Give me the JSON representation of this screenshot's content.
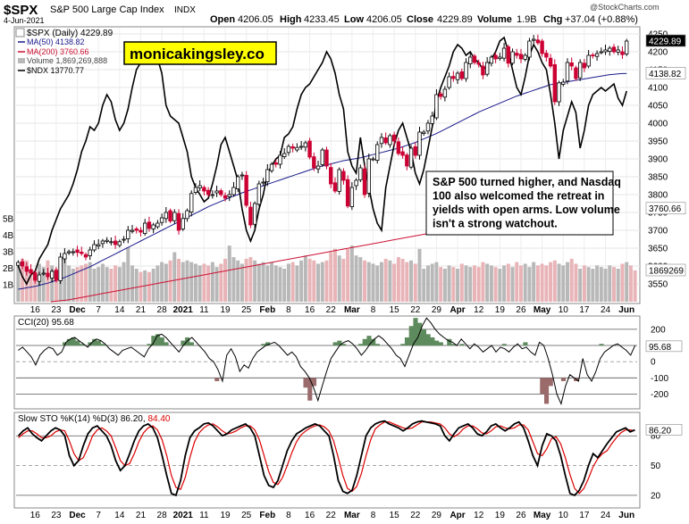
{
  "header": {
    "symbol": "$SPX",
    "name": "S&P 500 Large Cap Index",
    "exchange": "INDX",
    "date": "4-Jun-2021",
    "open_label": "Open",
    "open": "4206.05",
    "high_label": "High",
    "high": "4233.45",
    "low_label": "Low",
    "low": "4206.05",
    "close_label": "Close",
    "close": "4229.89",
    "volume_label": "Volume",
    "volume": "1.9B",
    "chg_label": "Chg",
    "chg": "+37.04 (+0.88%)",
    "watermark": "@StockCharts.com"
  },
  "legend": {
    "spx": "$SPX (Daily) 4229.89",
    "ma50": "MA(50) 4138.82",
    "ma200": "MA(200) 3760.66",
    "volume": "Volume 1,869,269,888",
    "ndx": "$NDX 13770.77"
  },
  "brand": "monicakingsley.co",
  "annotation": "S&P 500 turned higher, and Nasdaq 100 also welcomed the retreat in yields with open arms. Low volume isn't a strong watchout.",
  "colors": {
    "up": "#000000",
    "down": "#cc0033",
    "ma50": "#1a1a8c",
    "ma200": "#cc1133",
    "ndx": "#000000",
    "cci_fill": "#5e8b5e",
    "cci_neg_fill": "#9b6b6b",
    "sto_k": "#000000",
    "sto_d": "#dd0000",
    "brand_bg": "#ffff00",
    "vol_up": "#b8b8b8",
    "vol_down": "#e8b4b8"
  },
  "chart_data": {
    "type": "candlestick",
    "main_axis": {
      "ylim": [
        3500,
        4260
      ],
      "ticks": [
        3550,
        3600,
        3650,
        3700,
        3750,
        3800,
        3850,
        3900,
        3950,
        4000,
        4050,
        4100,
        4150,
        4200,
        4250
      ],
      "tick_labels": [
        "3550",
        "3600",
        "3650",
        "3700",
        "3750",
        "3800",
        "3850",
        "3900",
        "3950",
        "4000",
        "4050",
        "4100",
        "4150",
        "4200",
        "4250"
      ],
      "last_value_labels": [
        "4229.89",
        "4138.82",
        "3760.66",
        "1869269"
      ],
      "ndx_last_label": "13770.77"
    },
    "volume_axis": {
      "ticks": [
        "1B",
        "2B",
        "3B",
        "4B",
        "5B"
      ]
    },
    "x_labels": [
      "16",
      "23",
      "Dec",
      "7",
      "14",
      "21",
      "28",
      "2021",
      "11",
      "19",
      "25",
      "Feb",
      "8",
      "16",
      "22",
      "Mar",
      "8",
      "15",
      "22",
      "29",
      "Apr",
      "12",
      "19",
      "26",
      "May",
      "10",
      "17",
      "24",
      "Jun"
    ],
    "closes": [
      3610,
      3600,
      3585,
      3580,
      3560,
      3575,
      3580,
      3570,
      3585,
      3560,
      3625,
      3635,
      3640,
      3640,
      3638,
      3635,
      3625,
      3645,
      3660,
      3660,
      3670,
      3672,
      3668,
      3660,
      3668,
      3675,
      3700,
      3700,
      3700,
      3695,
      3720,
      3705,
      3715,
      3720,
      3735,
      3750,
      3726,
      3750,
      3700,
      3733,
      3755,
      3803,
      3820,
      3825,
      3810,
      3800,
      3800,
      3810,
      3800,
      3790,
      3800,
      3820,
      3850,
      3855,
      3770,
      3715,
      3775,
      3830,
      3835,
      3870,
      3885,
      3885,
      3910,
      3915,
      3935,
      3930,
      3932,
      3935,
      3945,
      3905,
      3875,
      3880,
      3925,
      3880,
      3830,
      3810,
      3870,
      3840,
      3768,
      3820,
      3840,
      3875,
      3800,
      3900,
      3900,
      3940,
      3960,
      3945,
      3965,
      3950,
      3915,
      3910,
      3880,
      3930,
      3910,
      3975,
      3975,
      4000,
      4020,
      4080,
      4075,
      4095,
      4130,
      4125,
      4140,
      4125,
      4170,
      4185,
      4170,
      4165,
      4135,
      4170,
      4185,
      4180,
      4185,
      4210,
      4168,
      4200,
      4190,
      4180,
      4190,
      4230,
      4235,
      4225,
      4195,
      4185,
      4160,
      4060,
      4113,
      4115,
      4170,
      4160,
      4125,
      4170,
      4155,
      4190,
      4190,
      4195,
      4200,
      4205,
      4210,
      4200,
      4205,
      4192,
      4230
    ],
    "ma50": [
      3535,
      3537,
      3539,
      3541,
      3543,
      3546,
      3549,
      3552,
      3556,
      3560,
      3564,
      3568,
      3573,
      3578,
      3583,
      3588,
      3593,
      3598,
      3604,
      3610,
      3616,
      3622,
      3628,
      3634,
      3640,
      3646,
      3652,
      3658,
      3664,
      3670,
      3676,
      3682,
      3688,
      3694,
      3700,
      3706,
      3712,
      3718,
      3724,
      3730,
      3736,
      3742,
      3748,
      3754,
      3760,
      3766,
      3771,
      3776,
      3781,
      3786,
      3791,
      3796,
      3800,
      3805,
      3809,
      3813,
      3817,
      3821,
      3825,
      3829,
      3833,
      3837,
      3841,
      3845,
      3849,
      3853,
      3857,
      3861,
      3865,
      3869,
      3873,
      3877,
      3880,
      3883,
      3886,
      3889,
      3892,
      3895,
      3897,
      3899,
      3901,
      3903,
      3906,
      3909,
      3912,
      3915,
      3918,
      3921,
      3924,
      3927,
      3930,
      3934,
      3938,
      3942,
      3946,
      3951,
      3956,
      3961,
      3966,
      3971,
      3977,
      3983,
      3989,
      3995,
      4001,
      4007,
      4013,
      4019,
      4025,
      4031,
      4036,
      4041,
      4046,
      4051,
      4056,
      4061,
      4066,
      4071,
      4076,
      4080,
      4084,
      4088,
      4092,
      4096,
      4100,
      4104,
      4108,
      4110,
      4112,
      4114,
      4116,
      4118,
      4120,
      4122,
      4124,
      4126,
      4128,
      4130,
      4132,
      4134,
      4136,
      4137,
      4138,
      4139,
      4139
    ],
    "ma200": {
      "x": [
        57,
        76,
        89,
        102,
        115,
        128,
        141,
        154,
        167,
        180,
        193,
        206,
        219,
        232,
        245,
        258,
        271,
        284,
        297,
        310,
        323,
        336,
        349,
        362,
        375,
        388,
        401,
        414,
        427,
        440,
        453,
        466,
        479,
        492,
        505,
        518,
        531,
        544
      ],
      "values": [
        3500,
        3505,
        3511,
        3517,
        3523,
        3529,
        3535,
        3541,
        3547,
        3553,
        3559,
        3565,
        3571,
        3577,
        3583,
        3589,
        3595,
        3601,
        3607,
        3613,
        3619,
        3625,
        3631,
        3637,
        3643,
        3649,
        3655,
        3661,
        3667,
        3673,
        3679,
        3685,
        3691,
        3697,
        3703,
        3709,
        3715,
        3721
      ],
      "note_last": 3760.66
    },
    "ndx_scaled": [
      3600,
      3570,
      3550,
      3575,
      3585,
      3620,
      3640,
      3660,
      3700,
      3730,
      3760,
      3780,
      3800,
      3830,
      3870,
      3920,
      3950,
      3990,
      3980,
      4000,
      4050,
      4080,
      4060,
      4010,
      3980,
      4000,
      4040,
      4100,
      4150,
      4170,
      4200,
      4210,
      4220,
      4180,
      4140,
      4050,
      4020,
      4010,
      4000,
      3960,
      3920,
      3850,
      3820,
      3800,
      3780,
      3790,
      3830,
      3880,
      3940,
      3960,
      3920,
      3880,
      3840,
      3760,
      3700,
      3670,
      3700,
      3760,
      3800,
      3860,
      3880,
      3900,
      3910,
      3960,
      3970,
      3990,
      4040,
      4080,
      4100,
      4110,
      4130,
      4150,
      4170,
      4200,
      4180,
      4140,
      4080,
      4040,
      3920,
      3880,
      3860,
      3960,
      3880,
      3820,
      3760,
      3720,
      3700,
      3820,
      3880,
      3940,
      3980,
      4000,
      3960,
      3920,
      3860,
      3830,
      3870,
      3930,
      3990,
      4060,
      4100,
      4130,
      4160,
      4200,
      4220,
      4210,
      4190,
      4200,
      4180,
      4170,
      4150,
      4160,
      4180,
      4200,
      4230,
      4240,
      4200,
      4150,
      4100,
      4080,
      4130,
      4190,
      4220,
      4200,
      4170,
      4150,
      4080,
      4000,
      3900,
      3980,
      4020,
      4060,
      4030,
      3930,
      3980,
      4050,
      4080,
      4090,
      4100,
      4090,
      4100,
      4110,
      4070,
      4050,
      4090
    ],
    "volume_billions": [
      2.4,
      2.6,
      2.5,
      1.8,
      1.9,
      2.3,
      2.1,
      2.5,
      2.2,
      2.0,
      2.4,
      2.6,
      2.2,
      2.0,
      2.1,
      2.2,
      2.3,
      2.4,
      2.0,
      2.1,
      2.3,
      2.1,
      2.0,
      2.2,
      2.1,
      2.4,
      3.3,
      2.2,
      2.0,
      1.8,
      1.9,
      1.8,
      2.0,
      2.2,
      2.4,
      2.3,
      2.5,
      3.0,
      2.6,
      2.4,
      2.5,
      2.4,
      2.3,
      2.2,
      2.3,
      2.2,
      2.4,
      2.1,
      2.3,
      2.6,
      3.4,
      2.7,
      2.5,
      2.3,
      2.6,
      2.7,
      2.5,
      2.3,
      2.4,
      2.2,
      2.4,
      2.2,
      2.1,
      2.0,
      2.3,
      2.4,
      2.2,
      2.5,
      2.8,
      2.6,
      2.5,
      2.3,
      2.4,
      2.5,
      3.0,
      3.2,
      2.8,
      2.6,
      3.2,
      3.4,
      2.8,
      2.7,
      2.5,
      2.4,
      2.3,
      2.2,
      2.4,
      2.6,
      2.5,
      2.3,
      2.7,
      2.6,
      2.4,
      2.5,
      2.3,
      3.2,
      2.0,
      2.2,
      2.3,
      2.4,
      2.1,
      2.0,
      2.2,
      2.1,
      2.0,
      2.3,
      2.2,
      2.1,
      2.2,
      2.1,
      2.4,
      2.3,
      2.2,
      2.1,
      2.0,
      2.2,
      2.3,
      2.1,
      2.4,
      2.2,
      2.3,
      2.1,
      2.4,
      2.2,
      2.3,
      2.2,
      2.4,
      2.5,
      2.3,
      2.2,
      2.4,
      2.6,
      2.3,
      2.0,
      2.2,
      2.1,
      2.0,
      2.2,
      2.1,
      2.0,
      2.2,
      2.1,
      2.0,
      2.3,
      2.4,
      2.2,
      1.9
    ],
    "cci": {
      "label": "CCI(20) 95.68",
      "last_label": "95.68",
      "ylim": [
        -280,
        260
      ],
      "ticks": [
        200,
        100,
        0,
        -100,
        -200
      ],
      "tick_labels": [
        "200",
        "100",
        "0",
        "-100",
        "-200"
      ],
      "values": [
        70,
        90,
        60,
        30,
        -20,
        40,
        70,
        90,
        80,
        40,
        60,
        120,
        140,
        150,
        130,
        110,
        90,
        120,
        140,
        130,
        110,
        80,
        60,
        40,
        70,
        80,
        90,
        70,
        50,
        30,
        80,
        110,
        160,
        170,
        150,
        120,
        90,
        60,
        100,
        130,
        150,
        120,
        90,
        60,
        20,
        0,
        -50,
        -120,
        40,
        80,
        30,
        -60,
        -20,
        -40,
        20,
        60,
        80,
        100,
        110,
        120,
        100,
        70,
        40,
        60,
        30,
        -30,
        -60,
        -100,
        -160,
        -240,
        -150,
        -60,
        20,
        60,
        100,
        120,
        130,
        110,
        80,
        40,
        70,
        110,
        140,
        160,
        140,
        110,
        80,
        40,
        20,
        -30,
        40,
        110,
        150,
        220,
        270,
        240,
        200,
        170,
        150,
        130,
        120,
        100,
        140,
        110,
        80,
        110,
        90,
        60,
        80,
        100,
        60,
        90,
        80,
        60,
        90,
        110,
        80,
        90,
        60,
        40,
        120,
        100,
        20,
        -80,
        -200,
        -260,
        -150,
        -80,
        -100,
        -120,
        20,
        -80,
        -120,
        -60,
        20,
        60,
        80,
        100,
        110,
        90,
        70,
        40,
        100
      ]
    },
    "sto": {
      "label": "Slow STO %K(14) %D(3) 86.20,",
      "d_label": "84.40",
      "last_label": "86.20",
      "ylim": [
        10,
        100
      ],
      "ticks": [
        80,
        50,
        20
      ],
      "tick_labels": [
        "80",
        "50",
        "20"
      ],
      "k": [
        80,
        85,
        88,
        82,
        78,
        75,
        80,
        85,
        88,
        86,
        80,
        60,
        50,
        55,
        70,
        82,
        88,
        90,
        85,
        80,
        70,
        55,
        45,
        50,
        62,
        75,
        85,
        90,
        92,
        88,
        78,
        60,
        40,
        22,
        20,
        35,
        60,
        78,
        85,
        88,
        92,
        93,
        90,
        85,
        80,
        82,
        86,
        88,
        90,
        92,
        88,
        80,
        60,
        40,
        30,
        28,
        35,
        50,
        65,
        75,
        82,
        85,
        88,
        90,
        92,
        90,
        85,
        80,
        60,
        35,
        24,
        22,
        25,
        40,
        60,
        80,
        88,
        92,
        94,
        95,
        92,
        90,
        88,
        85,
        88,
        92,
        94,
        95,
        94,
        93,
        92,
        90,
        80,
        75,
        82,
        88,
        90,
        92,
        88,
        82,
        80,
        84,
        90,
        92,
        88,
        85,
        88,
        92,
        94,
        88,
        75,
        60,
        50,
        70,
        82,
        80,
        75,
        60,
        40,
        22,
        20,
        25,
        35,
        50,
        62,
        58,
        65,
        72,
        78,
        84,
        86,
        88,
        84,
        86
      ],
      "d": [
        78,
        82,
        85,
        85,
        82,
        78,
        78,
        80,
        84,
        86,
        85,
        75,
        62,
        55,
        58,
        68,
        80,
        86,
        88,
        85,
        80,
        68,
        55,
        50,
        52,
        62,
        74,
        83,
        88,
        90,
        86,
        76,
        60,
        40,
        28,
        26,
        38,
        58,
        74,
        83,
        88,
        91,
        92,
        89,
        85,
        82,
        83,
        85,
        88,
        90,
        90,
        86,
        76,
        60,
        44,
        33,
        31,
        38,
        50,
        63,
        74,
        81,
        85,
        88,
        90,
        91,
        89,
        85,
        75,
        58,
        40,
        27,
        24,
        29,
        42,
        60,
        76,
        87,
        91,
        94,
        94,
        92,
        90,
        88,
        87,
        88,
        91,
        94,
        94,
        94,
        93,
        92,
        88,
        82,
        79,
        82,
        87,
        90,
        90,
        87,
        83,
        82,
        85,
        89,
        90,
        88,
        87,
        88,
        91,
        91,
        86,
        74,
        62,
        60,
        67,
        77,
        79,
        72,
        58,
        41,
        27,
        22,
        27,
        37,
        49,
        57,
        62,
        65,
        72,
        78,
        83,
        86,
        86,
        85
      ]
    },
    "n_candles": 147,
    "x_label_index": [
      4,
      9,
      14,
      19,
      24,
      29,
      34,
      39,
      44,
      49,
      54,
      59,
      64,
      69,
      74,
      79,
      84,
      89,
      94,
      99,
      104,
      109,
      114,
      119,
      124,
      129,
      134,
      139,
      144
    ]
  }
}
